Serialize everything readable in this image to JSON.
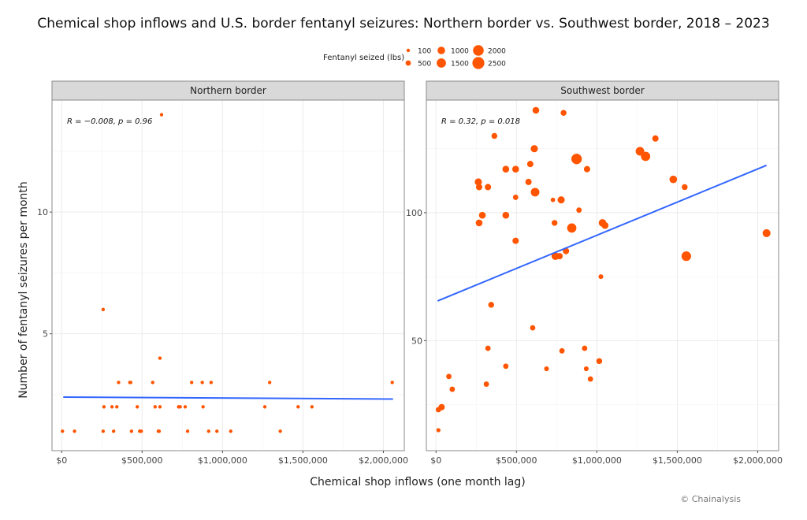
{
  "chart_data": {
    "type": "scatter",
    "title": "Chemical shop inflows and U.S. border fentanyl seizures: Northern border vs. Southwest border, 2018 – 2023",
    "xlabel": "Chemical shop inflows (one month lag)",
    "ylabel": "Number of fentanyl seizures per month",
    "credit": "© Chainalysis",
    "legend": {
      "title": "Fentanyl seized (lbs)",
      "placement": "top-center",
      "entries": [
        {
          "label": "100",
          "value": 100
        },
        {
          "label": "500",
          "value": 500
        },
        {
          "label": "1000",
          "value": 1000
        },
        {
          "label": "1500",
          "value": 1500
        },
        {
          "label": "2000",
          "value": 2000
        },
        {
          "label": "2500",
          "value": 2500
        }
      ]
    },
    "colors": {
      "point": "#ff5500",
      "trend": "#3366ff",
      "strip": "#d9d9d9",
      "grid": "#ebebeb"
    },
    "xlim": [
      -60000,
      2130000
    ],
    "x_ticks": [
      0,
      500000,
      1000000,
      1500000,
      2000000
    ],
    "x_tick_labels": [
      "$0",
      "$500,000",
      "$1,000,000",
      "$1,500,000",
      "$2,000,000"
    ],
    "grid": true,
    "panels": [
      {
        "name": "Northern border",
        "annotation": "R = −0.008, p = 0.96",
        "ylim": [
          0.2,
          14.6
        ],
        "y_ticks": [
          5,
          10
        ],
        "y_tick_labels": [
          "5",
          "10"
        ],
        "y_minor": [
          2.5,
          7.5,
          12.5
        ],
        "trend": {
          "x": [
            10000,
            2060000
          ],
          "y": [
            2.4,
            2.32
          ]
        },
        "points": [
          {
            "x": 5000,
            "y": 1,
            "lbs": 20
          },
          {
            "x": 80000,
            "y": 1,
            "lbs": 30
          },
          {
            "x": 258000,
            "y": 1,
            "lbs": 20
          },
          {
            "x": 323000,
            "y": 1,
            "lbs": 20
          },
          {
            "x": 434000,
            "y": 1,
            "lbs": 20
          },
          {
            "x": 485000,
            "y": 1,
            "lbs": 30
          },
          {
            "x": 495000,
            "y": 1,
            "lbs": 30
          },
          {
            "x": 601000,
            "y": 1,
            "lbs": 40
          },
          {
            "x": 606000,
            "y": 1,
            "lbs": 30
          },
          {
            "x": 783000,
            "y": 1,
            "lbs": 20
          },
          {
            "x": 914000,
            "y": 1,
            "lbs": 20
          },
          {
            "x": 965000,
            "y": 1,
            "lbs": 20
          },
          {
            "x": 1051000,
            "y": 1,
            "lbs": 20
          },
          {
            "x": 1359000,
            "y": 1,
            "lbs": 20
          },
          {
            "x": 263000,
            "y": 2,
            "lbs": 20
          },
          {
            "x": 313000,
            "y": 2,
            "lbs": 20
          },
          {
            "x": 343000,
            "y": 2,
            "lbs": 20
          },
          {
            "x": 470000,
            "y": 2,
            "lbs": 20
          },
          {
            "x": 581000,
            "y": 2,
            "lbs": 20
          },
          {
            "x": 611000,
            "y": 2,
            "lbs": 20
          },
          {
            "x": 727000,
            "y": 2,
            "lbs": 20
          },
          {
            "x": 737000,
            "y": 2,
            "lbs": 20
          },
          {
            "x": 768000,
            "y": 2,
            "lbs": 20
          },
          {
            "x": 879000,
            "y": 2,
            "lbs": 20
          },
          {
            "x": 1263000,
            "y": 2,
            "lbs": 20
          },
          {
            "x": 1470000,
            "y": 2,
            "lbs": 20
          },
          {
            "x": 1556000,
            "y": 2,
            "lbs": 20
          },
          {
            "x": 354000,
            "y": 3,
            "lbs": 20
          },
          {
            "x": 424000,
            "y": 3,
            "lbs": 30
          },
          {
            "x": 429000,
            "y": 3,
            "lbs": 30
          },
          {
            "x": 566000,
            "y": 3,
            "lbs": 20
          },
          {
            "x": 808000,
            "y": 3,
            "lbs": 30
          },
          {
            "x": 874000,
            "y": 3,
            "lbs": 20
          },
          {
            "x": 929000,
            "y": 3,
            "lbs": 30
          },
          {
            "x": 1293000,
            "y": 3,
            "lbs": 20
          },
          {
            "x": 2055000,
            "y": 3,
            "lbs": 20
          },
          {
            "x": 611000,
            "y": 4,
            "lbs": 20
          },
          {
            "x": 258000,
            "y": 6,
            "lbs": 20
          },
          {
            "x": 621000,
            "y": 14,
            "lbs": 20
          }
        ]
      },
      {
        "name": "Southwest border",
        "annotation": "R = 0.32, p = 0.018",
        "ylim": [
          7,
          144
        ],
        "y_ticks": [
          50,
          100
        ],
        "y_tick_labels": [
          "50",
          "100"
        ],
        "y_minor": [
          25,
          75,
          125
        ],
        "trend": {
          "x": [
            10000,
            2055000
          ],
          "y": [
            65.5,
            118.5
          ]
        },
        "points": [
          {
            "x": 621000,
            "y": 140,
            "lbs": 800
          },
          {
            "x": 793000,
            "y": 139,
            "lbs": 600
          },
          {
            "x": 363000,
            "y": 130,
            "lbs": 600
          },
          {
            "x": 1364000,
            "y": 129,
            "lbs": 700
          },
          {
            "x": 611000,
            "y": 125,
            "lbs": 900
          },
          {
            "x": 1268000,
            "y": 124,
            "lbs": 1300
          },
          {
            "x": 1303000,
            "y": 122,
            "lbs": 1500
          },
          {
            "x": 874000,
            "y": 121,
            "lbs": 1900
          },
          {
            "x": 586000,
            "y": 119,
            "lbs": 700
          },
          {
            "x": 434000,
            "y": 117,
            "lbs": 800
          },
          {
            "x": 495000,
            "y": 117,
            "lbs": 800
          },
          {
            "x": 939000,
            "y": 117,
            "lbs": 700
          },
          {
            "x": 1475000,
            "y": 113,
            "lbs": 1000
          },
          {
            "x": 263000,
            "y": 112,
            "lbs": 900
          },
          {
            "x": 575000,
            "y": 112,
            "lbs": 700
          },
          {
            "x": 268000,
            "y": 110,
            "lbs": 700
          },
          {
            "x": 323000,
            "y": 110,
            "lbs": 700
          },
          {
            "x": 1546000,
            "y": 110,
            "lbs": 600
          },
          {
            "x": 616000,
            "y": 108,
            "lbs": 1300
          },
          {
            "x": 495000,
            "y": 106,
            "lbs": 500
          },
          {
            "x": 727000,
            "y": 105,
            "lbs": 350
          },
          {
            "x": 778000,
            "y": 105,
            "lbs": 900
          },
          {
            "x": 889000,
            "y": 101,
            "lbs": 500
          },
          {
            "x": 288000,
            "y": 99,
            "lbs": 800
          },
          {
            "x": 434000,
            "y": 99,
            "lbs": 800
          },
          {
            "x": 268000,
            "y": 96,
            "lbs": 800
          },
          {
            "x": 737000,
            "y": 96,
            "lbs": 600
          },
          {
            "x": 1035000,
            "y": 96,
            "lbs": 1000
          },
          {
            "x": 1051000,
            "y": 95,
            "lbs": 800
          },
          {
            "x": 844000,
            "y": 94,
            "lbs": 1500
          },
          {
            "x": 495000,
            "y": 89,
            "lbs": 700
          },
          {
            "x": 808000,
            "y": 85,
            "lbs": 700
          },
          {
            "x": 742000,
            "y": 83,
            "lbs": 1000
          },
          {
            "x": 768000,
            "y": 83,
            "lbs": 700
          },
          {
            "x": 1556000,
            "y": 83,
            "lbs": 1600
          },
          {
            "x": 1025000,
            "y": 75,
            "lbs": 400
          },
          {
            "x": 2055000,
            "y": 92,
            "lbs": 1100
          },
          {
            "x": 343000,
            "y": 64,
            "lbs": 600
          },
          {
            "x": 601000,
            "y": 55,
            "lbs": 500
          },
          {
            "x": 323000,
            "y": 47,
            "lbs": 500
          },
          {
            "x": 924000,
            "y": 47,
            "lbs": 500
          },
          {
            "x": 783000,
            "y": 46,
            "lbs": 500
          },
          {
            "x": 1015000,
            "y": 42,
            "lbs": 600
          },
          {
            "x": 434000,
            "y": 40,
            "lbs": 500
          },
          {
            "x": 687000,
            "y": 39,
            "lbs": 400
          },
          {
            "x": 934000,
            "y": 39,
            "lbs": 400
          },
          {
            "x": 960000,
            "y": 35,
            "lbs": 500
          },
          {
            "x": 80000,
            "y": 36,
            "lbs": 500
          },
          {
            "x": 313000,
            "y": 33,
            "lbs": 500
          },
          {
            "x": 101000,
            "y": 31,
            "lbs": 500
          },
          {
            "x": 35000,
            "y": 24,
            "lbs": 700
          },
          {
            "x": 15000,
            "y": 23,
            "lbs": 500
          },
          {
            "x": 15000,
            "y": 15,
            "lbs": 300
          }
        ]
      }
    ]
  }
}
